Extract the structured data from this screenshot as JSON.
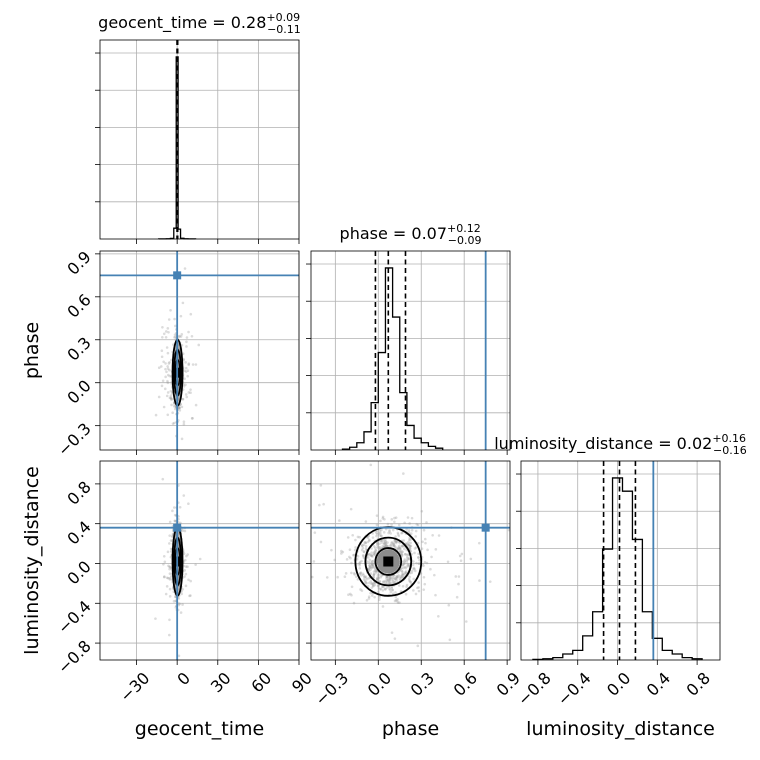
{
  "chart_data": {
    "type": "corner",
    "parameters": [
      {
        "name": "geocent_time",
        "label": "geocent_time",
        "median": 0.28,
        "plus": "+0.09",
        "minus": "−0.11",
        "title_value": "geocent_time = 0.28",
        "range": [
          -57,
          90
        ],
        "ticks": [
          -30,
          0,
          30,
          60,
          90
        ],
        "tick_labels": [
          "−30",
          "0",
          "30",
          "60",
          "90"
        ],
        "truth": 0.0,
        "quantiles": [
          -0.11,
          0.28,
          0.37
        ],
        "hist": {
          "edges": [
            -13.6,
            -8.0,
            -5.0,
            -2.5,
            -0.7,
            0.7,
            2.5,
            5.0,
            8.0,
            13.6
          ],
          "counts": [
            0.5,
            1.5,
            3,
            60,
            1011,
            55,
            4,
            1.5,
            0.5
          ]
        }
      },
      {
        "name": "phase",
        "label": "phase",
        "median": 0.07,
        "plus": "+0.12",
        "minus": "−0.09",
        "title_value": "phase = 0.07",
        "range": [
          -0.47,
          0.92
        ],
        "ticks": [
          -0.3,
          0.0,
          0.3,
          0.6,
          0.9
        ],
        "tick_labels": [
          "−0.3",
          "0.0",
          "0.3",
          "0.6",
          "0.9"
        ],
        "truth": 0.75,
        "quantiles": [
          -0.02,
          0.07,
          0.19
        ],
        "hist": {
          "edges": [
            -0.25,
            -0.2,
            -0.15,
            -0.1,
            -0.05,
            0.0,
            0.05,
            0.1,
            0.15,
            0.2,
            0.25,
            0.3,
            0.35,
            0.4,
            0.45
          ],
          "counts": [
            1,
            3,
            8,
            20,
            52,
            107,
            200,
            146,
            63,
            27,
            13,
            8,
            4,
            2
          ]
        }
      },
      {
        "name": "luminosity_distance",
        "label": "luminosity_distance",
        "median": 0.02,
        "plus": "+0.16",
        "minus": "−0.16",
        "title_value": "luminosity_distance = 0.02",
        "range": [
          -0.97,
          1.03
        ],
        "ticks": [
          -0.8,
          -0.4,
          0.0,
          0.4,
          0.8
        ],
        "tick_labels": [
          "−0.8",
          "−0.4",
          "0.0",
          "0.4",
          "0.8"
        ],
        "truth": 0.36,
        "quantiles": [
          -0.14,
          0.02,
          0.18
        ],
        "hist": {
          "edges": [
            -0.85,
            -0.75,
            -0.65,
            -0.55,
            -0.45,
            -0.35,
            -0.25,
            -0.15,
            -0.05,
            0.05,
            0.15,
            0.25,
            0.35,
            0.45,
            0.55,
            0.65,
            0.75,
            0.85
          ],
          "counts": [
            0.5,
            1,
            2,
            5,
            8,
            20,
            40,
            92,
            151,
            140,
            100,
            40,
            18,
            8,
            5,
            2,
            1
          ]
        }
      }
    ],
    "diagonal_yticks": 5,
    "grid": true,
    "truth_color": "#4682b4",
    "truths": [
      0.0,
      0.75,
      0.36
    ]
  }
}
